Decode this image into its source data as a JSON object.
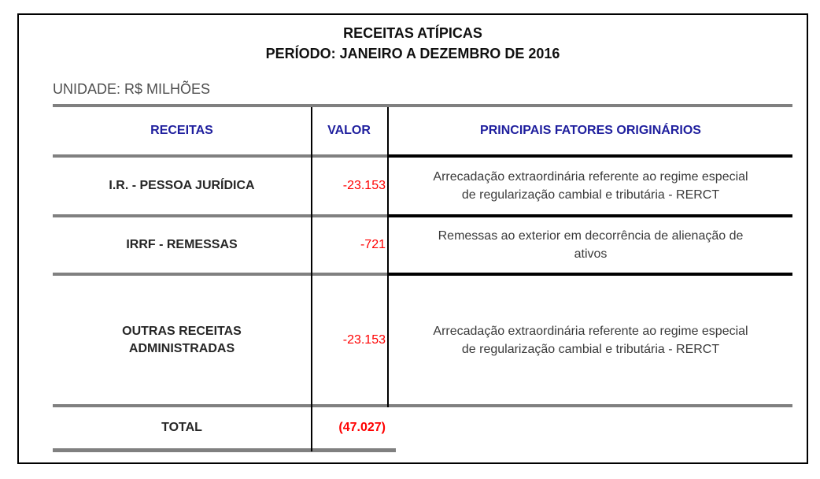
{
  "title": {
    "line1": "RECEITAS ATÍPICAS",
    "line2": "PERÍODO: JANEIRO A DEZEMBRO DE 2016"
  },
  "unit_label": "UNIDADE: R$ MILHÕES",
  "table": {
    "headers": {
      "receitas": "RECEITAS",
      "valor": "VALOR",
      "fatores": "PRINCIPAIS FATORES ORIGINÁRIOS"
    },
    "rows": [
      {
        "receita_lines": [
          "I.R. - PESSOA JURÍDICA"
        ],
        "valor": "-23.153",
        "fator_lines": [
          "Arrecadação extraordinária referente ao regime especial",
          "de regularização cambial e tributária - RERCT"
        ]
      },
      {
        "receita_lines": [
          "IRRF - REMESSAS"
        ],
        "valor": "-721",
        "fator_lines": [
          "Remessas ao exterior em decorrência de alienação de",
          "ativos"
        ]
      },
      {
        "receita_lines": [
          "OUTRAS RECEITAS",
          "ADMINISTRADAS"
        ],
        "valor": "-23.153",
        "fator_lines": [
          "Arrecadação extraordinária referente ao regime especial",
          "de regularização cambial e tributária - RERCT"
        ]
      }
    ],
    "total": {
      "label": "TOTAL",
      "valor": "(47.027)"
    }
  },
  "colors": {
    "header_text": "#1f1f9e",
    "negative_value": "#ff0000",
    "grid_gray": "#808080",
    "grid_black": "#000000"
  }
}
